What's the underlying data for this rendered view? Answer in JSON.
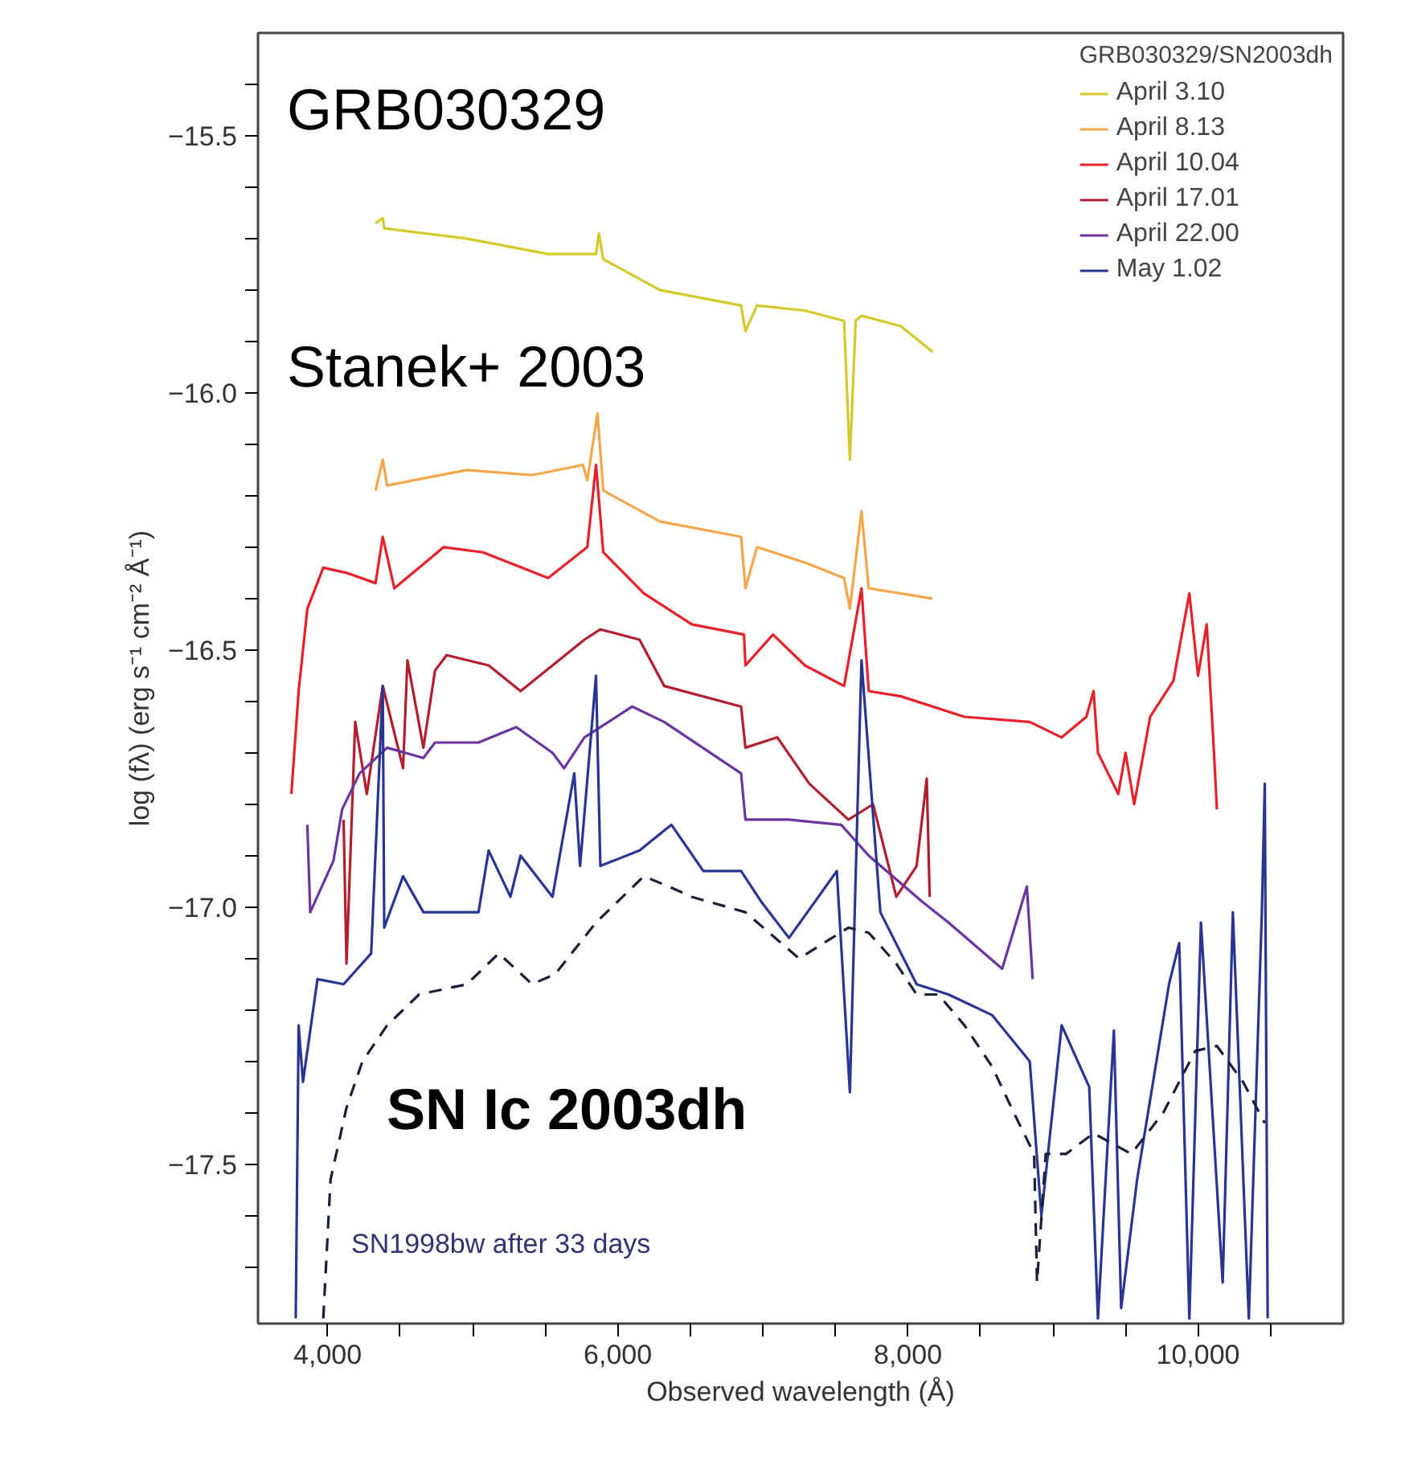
{
  "chart_data": {
    "type": "line",
    "xlabel": "Observed wavelength (Å)",
    "ylabel": "log (fλ) (erg s⁻¹ cm⁻² Å⁻¹)",
    "legend_title": "GRB030329/SN2003dh",
    "legend": "top right",
    "xlim": [
      3520,
      11000
    ],
    "ylim": [
      -17.81,
      -15.3
    ],
    "xticks": [
      {
        "value": 4000,
        "label": "4,000"
      },
      {
        "value": 4500,
        "label": null
      },
      {
        "value": 5000,
        "label": null
      },
      {
        "value": 5500,
        "label": null
      },
      {
        "value": 6000,
        "label": "6,000"
      },
      {
        "value": 6500,
        "label": null
      },
      {
        "value": 7000,
        "label": null
      },
      {
        "value": 7500,
        "label": null
      },
      {
        "value": 8000,
        "label": "8,000"
      },
      {
        "value": 8500,
        "label": null
      },
      {
        "value": 9000,
        "label": null
      },
      {
        "value": 9500,
        "label": null
      },
      {
        "value": 10000,
        "label": "10,000"
      },
      {
        "value": 10500,
        "label": null
      }
    ],
    "yticks": [
      {
        "value": -17.7,
        "label": null
      },
      {
        "value": -17.6,
        "label": null
      },
      {
        "value": -17.5,
        "label": "−17.5"
      },
      {
        "value": -17.4,
        "label": null
      },
      {
        "value": -17.3,
        "label": null
      },
      {
        "value": -17.2,
        "label": null
      },
      {
        "value": -17.1,
        "label": null
      },
      {
        "value": -17.0,
        "label": "−17.0"
      },
      {
        "value": -16.9,
        "label": null
      },
      {
        "value": -16.8,
        "label": null
      },
      {
        "value": -16.7,
        "label": null
      },
      {
        "value": -16.6,
        "label": null
      },
      {
        "value": -16.5,
        "label": "−16.5"
      },
      {
        "value": -16.4,
        "label": null
      },
      {
        "value": -16.3,
        "label": null
      },
      {
        "value": -16.2,
        "label": null
      },
      {
        "value": -16.1,
        "label": null
      },
      {
        "value": -16.0,
        "label": "−16.0"
      },
      {
        "value": -15.9,
        "label": null
      },
      {
        "value": -15.8,
        "label": null
      },
      {
        "value": -15.7,
        "label": null
      },
      {
        "value": -15.6,
        "label": null
      },
      {
        "value": -15.5,
        "label": "−15.5"
      },
      {
        "value": -15.4,
        "label": null
      }
    ],
    "annotations": [
      "GRB030329",
      "Stanek+ 2003",
      "SN Ic 2003dh",
      "SN1998bw after 33 days"
    ],
    "series": [
      {
        "name": "April 3.10",
        "color": "#d4c92a",
        "x": [
          4330,
          4380,
          4390,
          4960,
          5520,
          5850,
          5870,
          5900,
          6290,
          6850,
          6880,
          6960,
          7290,
          7560,
          7600,
          7640,
          7680,
          7950,
          8170
        ],
        "values": [
          -15.67,
          -15.66,
          -15.68,
          -15.7,
          -15.73,
          -15.73,
          -15.69,
          -15.74,
          -15.8,
          -15.83,
          -15.88,
          -15.83,
          -15.84,
          -15.86,
          -16.13,
          -15.86,
          -15.85,
          -15.87,
          -15.92
        ]
      },
      {
        "name": "April 8.13",
        "color": "#f5a54a",
        "x": [
          4330,
          4380,
          4410,
          4960,
          5410,
          5760,
          5790,
          5860,
          5900,
          6290,
          6850,
          6880,
          6960,
          7290,
          7560,
          7600,
          7680,
          7730,
          8170
        ],
        "values": [
          -16.19,
          -16.13,
          -16.18,
          -16.15,
          -16.16,
          -16.14,
          -16.17,
          -16.04,
          -16.19,
          -16.25,
          -16.28,
          -16.38,
          -16.3,
          -16.33,
          -16.36,
          -16.42,
          -16.23,
          -16.38,
          -16.4
        ]
      },
      {
        "name": "April 10.04",
        "color": "#e8202a",
        "x": [
          3750,
          3800,
          3860,
          3970,
          4130,
          4330,
          4380,
          4460,
          4800,
          5070,
          5520,
          5790,
          5850,
          5900,
          6180,
          6510,
          6870,
          6880,
          7070,
          7290,
          7560,
          7680,
          7730,
          7950,
          8390,
          8840,
          9060,
          9230,
          9280,
          9310,
          9450,
          9500,
          9560,
          9670,
          9830,
          9940,
          10000,
          10060,
          10110,
          10130
        ],
        "values": [
          -16.78,
          -16.58,
          -16.42,
          -16.34,
          -16.35,
          -16.37,
          -16.28,
          -16.38,
          -16.3,
          -16.31,
          -16.36,
          -16.3,
          -16.14,
          -16.31,
          -16.39,
          -16.45,
          -16.47,
          -16.53,
          -16.47,
          -16.53,
          -16.57,
          -16.38,
          -16.58,
          -16.59,
          -16.63,
          -16.64,
          -16.67,
          -16.63,
          -16.58,
          -16.7,
          -16.78,
          -16.7,
          -16.8,
          -16.63,
          -16.56,
          -16.39,
          -16.55,
          -16.45,
          -16.7,
          -16.81
        ]
      },
      {
        "name": "April 17.01",
        "color": "#b31e2e",
        "x": [
          4110,
          4130,
          4190,
          4270,
          4380,
          4520,
          4550,
          4660,
          4740,
          4820,
          5110,
          5330,
          5550,
          5770,
          5880,
          6150,
          6320,
          6850,
          6880,
          7100,
          7320,
          7590,
          7760,
          7920,
          8060,
          8130,
          8150
        ],
        "values": [
          -16.83,
          -17.11,
          -16.64,
          -16.78,
          -16.57,
          -16.73,
          -16.52,
          -16.69,
          -16.54,
          -16.51,
          -16.53,
          -16.58,
          -16.53,
          -16.48,
          -16.46,
          -16.48,
          -16.57,
          -16.61,
          -16.69,
          -16.67,
          -16.76,
          -16.83,
          -16.8,
          -16.98,
          -16.92,
          -16.75,
          -16.98
        ]
      },
      {
        "name": "April 22.00",
        "color": "#6a35a0",
        "x": [
          3860,
          3880,
          4040,
          4100,
          4220,
          4410,
          4660,
          4740,
          5040,
          5300,
          5550,
          5630,
          5770,
          6100,
          6320,
          6850,
          6880,
          7180,
          7540,
          7730,
          8100,
          8280,
          8650,
          8820,
          8860
        ],
        "values": [
          -16.84,
          -17.01,
          -16.91,
          -16.81,
          -16.74,
          -16.69,
          -16.71,
          -16.68,
          -16.68,
          -16.65,
          -16.7,
          -16.73,
          -16.67,
          -16.61,
          -16.64,
          -16.74,
          -16.83,
          -16.83,
          -16.84,
          -16.9,
          -16.99,
          -17.03,
          -17.12,
          -16.96,
          -17.14
        ]
      },
      {
        "name": "May 1.02",
        "color": "#283593",
        "x": [
          3780,
          3800,
          3830,
          3930,
          4110,
          4300,
          4380,
          4390,
          4520,
          4660,
          5040,
          5110,
          5260,
          5330,
          5550,
          5700,
          5740,
          5850,
          5880,
          6150,
          6370,
          6590,
          6850,
          6990,
          7180,
          7510,
          7600,
          7680,
          7810,
          8060,
          8280,
          8580,
          8840,
          8920,
          9060,
          9250,
          9310,
          9420,
          9470,
          9580,
          9800,
          9870,
          9940,
          10020,
          10170,
          10240,
          10350,
          10440,
          10460,
          10480
        ],
        "values": [
          -17.8,
          -17.23,
          -17.34,
          -17.14,
          -17.15,
          -17.09,
          -16.57,
          -17.04,
          -16.94,
          -17.01,
          -17.01,
          -16.89,
          -16.98,
          -16.9,
          -16.98,
          -16.74,
          -16.92,
          -16.55,
          -16.92,
          -16.89,
          -16.84,
          -16.93,
          -16.93,
          -16.99,
          -17.06,
          -16.93,
          -17.36,
          -16.52,
          -17.01,
          -17.15,
          -17.17,
          -17.21,
          -17.3,
          -17.6,
          -17.23,
          -17.35,
          -17.8,
          -17.24,
          -17.78,
          -17.53,
          -17.15,
          -17.07,
          -17.8,
          -17.03,
          -17.73,
          -17.01,
          -17.8,
          -17.01,
          -16.76,
          -17.8
        ]
      },
      {
        "color": "#1a1f3a",
        "line_style": "dashed",
        "x": [
          3970,
          4020,
          4130,
          4240,
          4410,
          4630,
          4960,
          5180,
          5410,
          5570,
          5850,
          6180,
          6350,
          6510,
          6880,
          7250,
          7590,
          7730,
          7920,
          8060,
          8210,
          8390,
          8580,
          8730,
          8870,
          8890,
          8950,
          9090,
          9280,
          9540,
          9760,
          9980,
          10130,
          10310,
          10460
        ],
        "values": [
          -17.8,
          -17.53,
          -17.39,
          -17.3,
          -17.23,
          -17.17,
          -17.15,
          -17.09,
          -17.15,
          -17.13,
          -17.03,
          -16.94,
          -16.96,
          -16.98,
          -17.01,
          -17.1,
          -17.04,
          -17.05,
          -17.11,
          -17.17,
          -17.17,
          -17.23,
          -17.31,
          -17.4,
          -17.48,
          -17.73,
          -17.48,
          -17.48,
          -17.44,
          -17.48,
          -17.4,
          -17.28,
          -17.27,
          -17.34,
          -17.42
        ]
      }
    ]
  }
}
